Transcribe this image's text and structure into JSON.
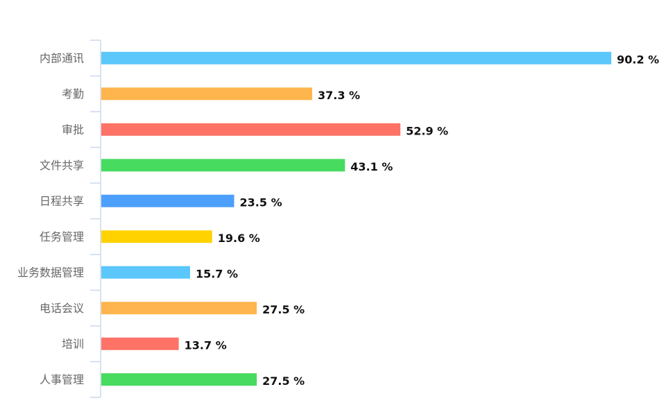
{
  "chart_data": {
    "type": "bar",
    "orientation": "horizontal",
    "categories": [
      "内部通讯",
      "考勤",
      "审批",
      "文件共享",
      "日程共享",
      "任务管理",
      "业务数据管理",
      "电话会议",
      "培训",
      "人事管理"
    ],
    "values": [
      90.2,
      37.3,
      52.9,
      43.1,
      23.5,
      19.6,
      15.7,
      27.5,
      13.7,
      27.5
    ],
    "value_labels": [
      "90.2 %",
      "37.3 %",
      "52.9 %",
      "43.1 %",
      "23.5 %",
      "19.6 %",
      "15.7 %",
      "27.5 %",
      "13.7 %",
      "27.5 %"
    ],
    "colors": [
      "#5bc7fb",
      "#ffb54d",
      "#ff7266",
      "#47db60",
      "#4d9ffc",
      "#ffd200",
      "#5bc7fb",
      "#ffb54d",
      "#ff7266",
      "#47db60"
    ],
    "unit": "%",
    "xlim": [
      0,
      100
    ],
    "grid": false,
    "legend": "none"
  }
}
